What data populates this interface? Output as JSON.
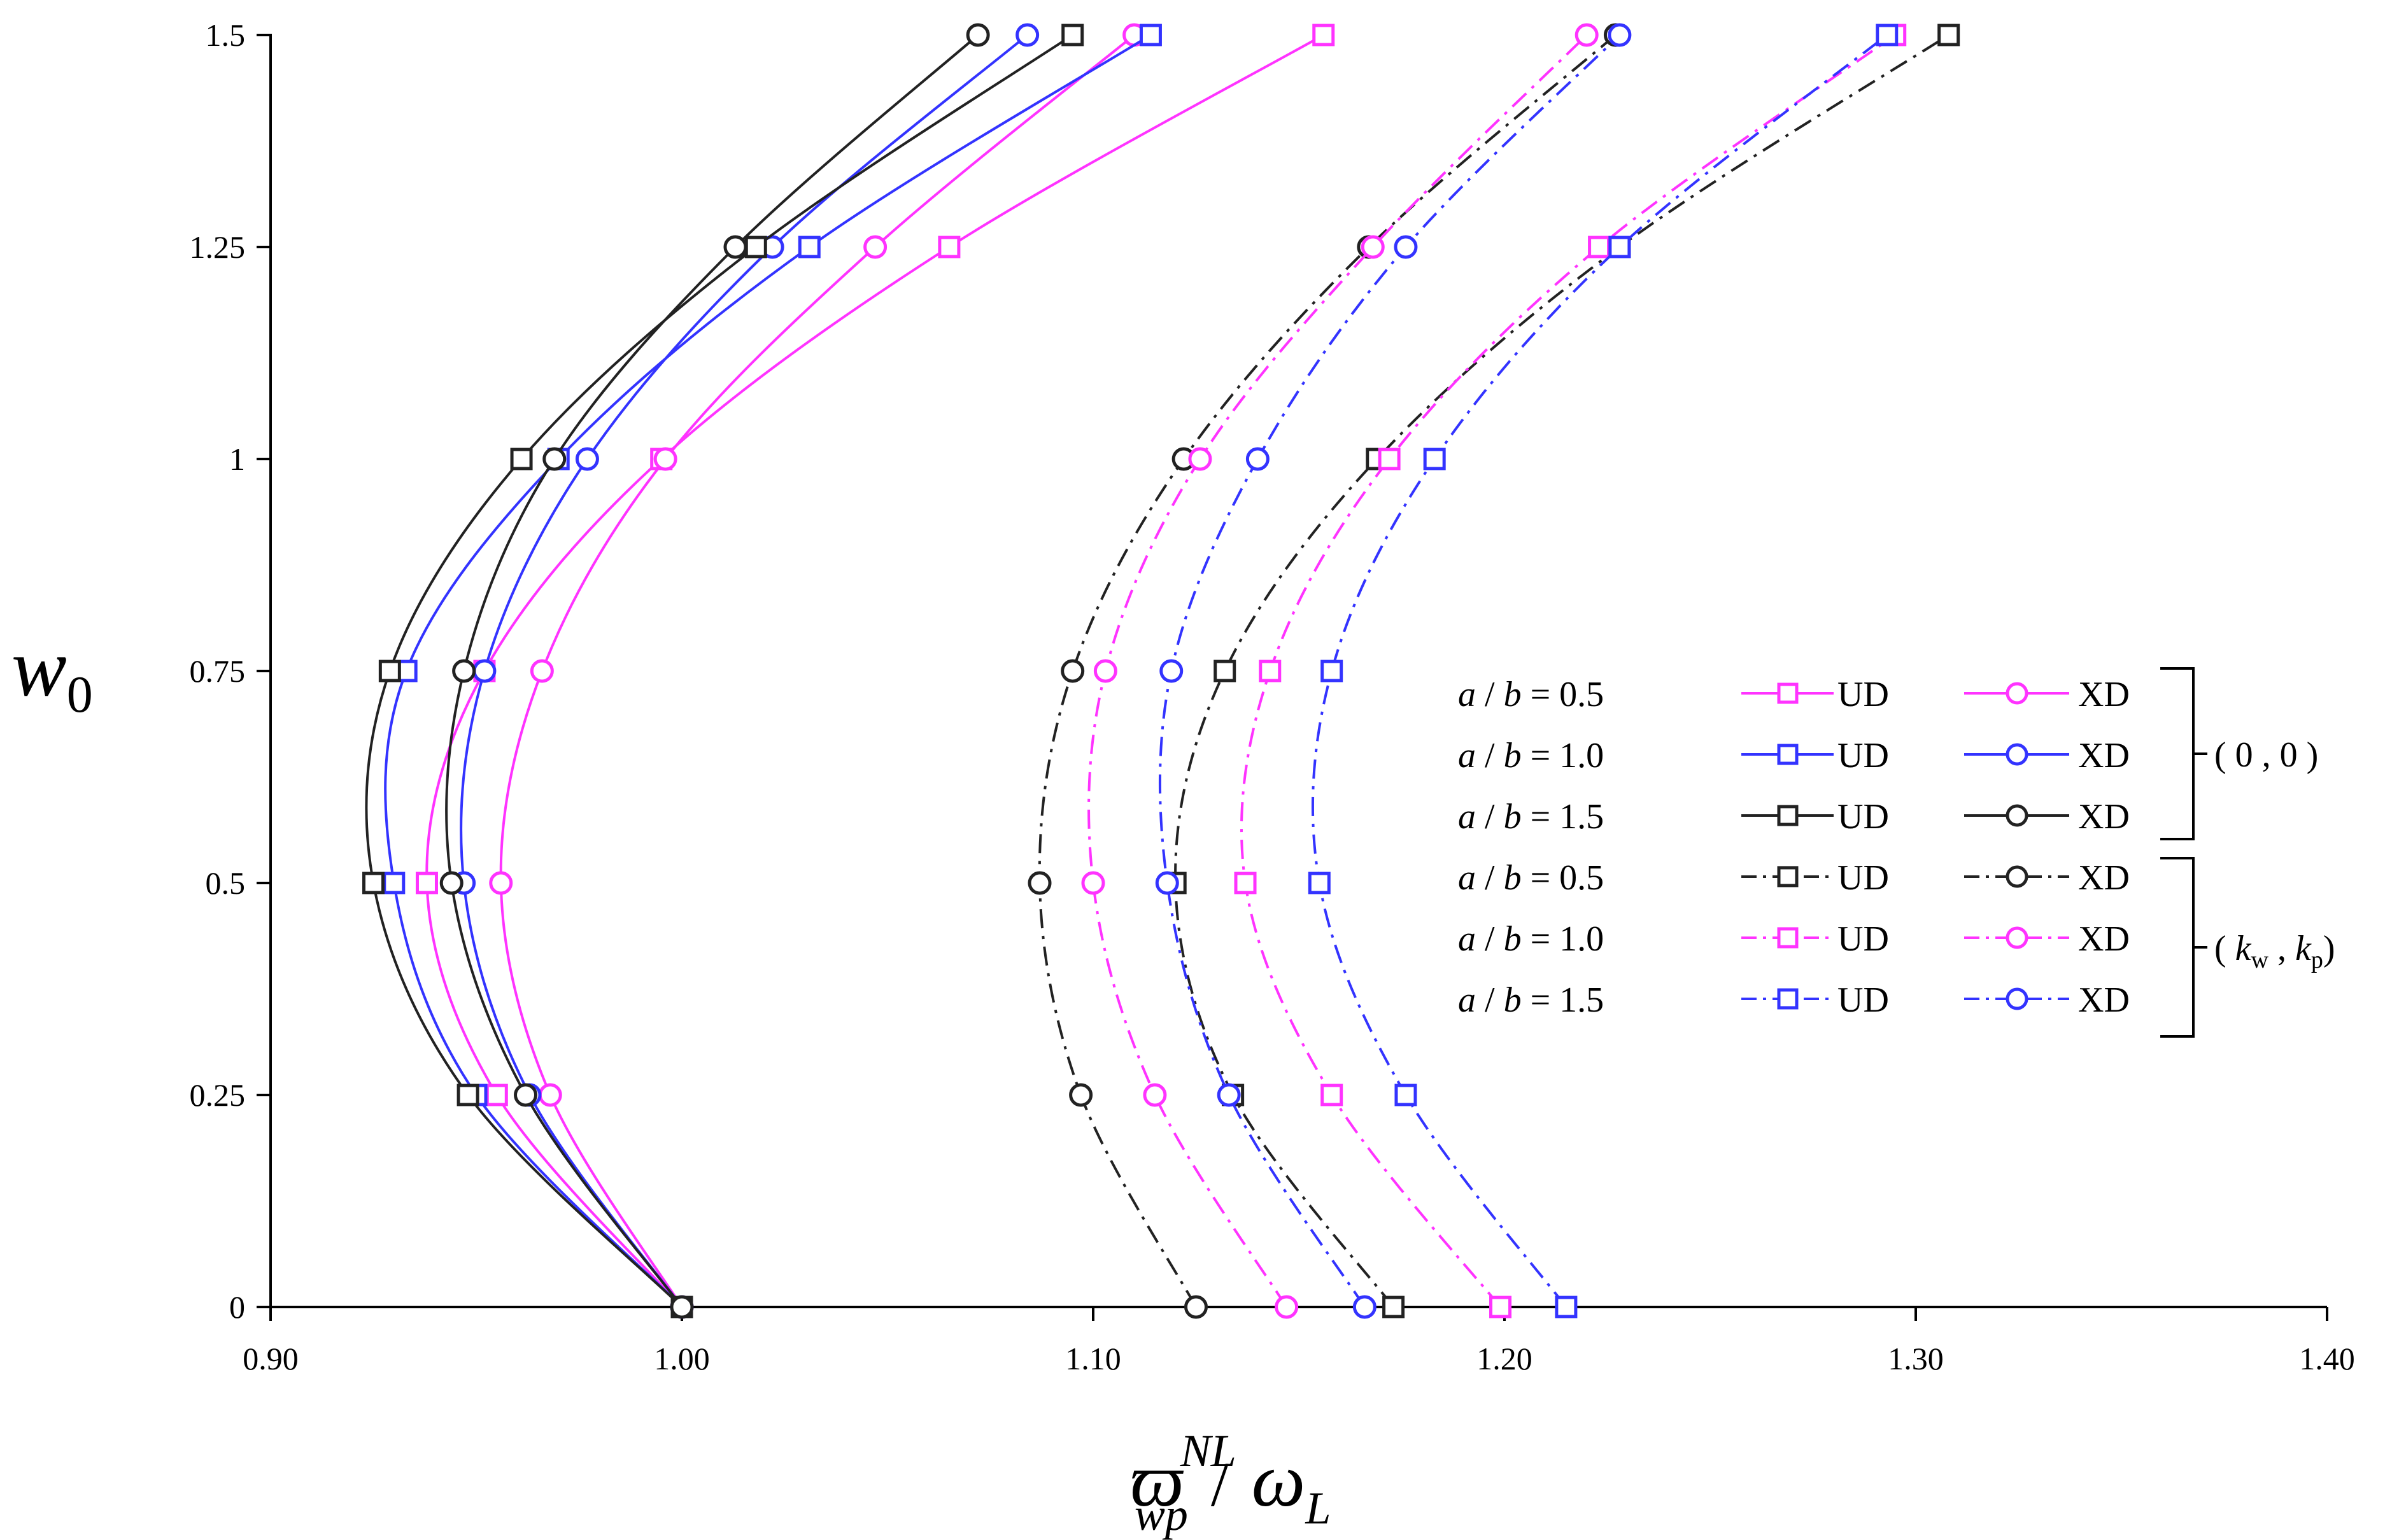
{
  "chart_data": {
    "type": "line",
    "title": "",
    "x_axis": {
      "label_base": "ϖ",
      "label_sub": "wp",
      "label_sup": "NL",
      "label_sep": "/",
      "label_base2": "ω",
      "label_sub2": "L",
      "min": 0.9,
      "max": 1.4,
      "ticks": [
        "0.90",
        "1.00",
        "1.10",
        "1.20",
        "1.30",
        "1.40"
      ]
    },
    "y_axis": {
      "label_base": "w",
      "label_sub": "0",
      "min": 0,
      "max": 1.5,
      "ticks": [
        "0",
        "0.25",
        "0.5",
        "0.75",
        "1",
        "1.25",
        "1.5"
      ]
    },
    "grid": false,
    "legend_position": "right",
    "legend": {
      "rows": [
        {
          "prefix": "a",
          "mid": " / ",
          "var": "b",
          "eq": " = 0.5",
          "left": "UD",
          "right": "XD"
        },
        {
          "prefix": "a",
          "mid": " / ",
          "var": "b",
          "eq": " = 1.0",
          "left": "UD",
          "right": "XD"
        },
        {
          "prefix": "a",
          "mid": " / ",
          "var": "b",
          "eq": " = 1.5",
          "left": "UD",
          "right": "XD"
        },
        {
          "prefix": "a",
          "mid": " / ",
          "var": "b",
          "eq": " = 0.5",
          "left": "UD",
          "right": "XD"
        },
        {
          "prefix": "a",
          "mid": " / ",
          "var": "b",
          "eq": " = 1.0",
          "left": "UD",
          "right": "XD"
        },
        {
          "prefix": "a",
          "mid": " / ",
          "var": "b",
          "eq": " = 1.5",
          "left": "UD",
          "right": "XD"
        }
      ],
      "group1_label": "( 0 , 0 )",
      "group2_open": "( ",
      "group2_k1": "k",
      "group2_sub1": "w",
      "group2_comma": " , ",
      "group2_k2": "k",
      "group2_sub2": "p",
      "group2_close": ")"
    },
    "y": [
      0,
      0.25,
      0.5,
      0.75,
      1.0,
      1.25,
      1.5
    ],
    "series": [
      {
        "foundation": "(0,0)",
        "ab": 0.5,
        "type": "UD",
        "marker": "square",
        "dash": "solid",
        "color": "#ff33ff",
        "x": [
          1.0,
          0.955,
          0.938,
          0.952,
          0.995,
          1.065,
          1.156
        ]
      },
      {
        "foundation": "(0,0)",
        "ab": 0.5,
        "type": "XD",
        "marker": "circle",
        "dash": "solid",
        "color": "#ff33ff",
        "x": [
          1.0,
          0.968,
          0.956,
          0.966,
          0.996,
          1.047,
          1.11
        ]
      },
      {
        "foundation": "(0,0)",
        "ab": 1.0,
        "type": "UD",
        "marker": "square",
        "dash": "solid",
        "color": "#3333ff",
        "x": [
          1.0,
          0.95,
          0.93,
          0.933,
          0.97,
          1.031,
          1.114
        ]
      },
      {
        "foundation": "(0,0)",
        "ab": 1.0,
        "type": "XD",
        "marker": "circle",
        "dash": "solid",
        "color": "#3333ff",
        "x": [
          1.0,
          0.963,
          0.947,
          0.952,
          0.977,
          1.022,
          1.084
        ]
      },
      {
        "foundation": "(0,0)",
        "ab": 1.5,
        "type": "UD",
        "marker": "square",
        "dash": "solid",
        "color": "#222222",
        "x": [
          1.0,
          0.948,
          0.925,
          0.929,
          0.961,
          1.018,
          1.095
        ]
      },
      {
        "foundation": "(0,0)",
        "ab": 1.5,
        "type": "XD",
        "marker": "circle",
        "dash": "solid",
        "color": "#222222",
        "x": [
          1.0,
          0.962,
          0.944,
          0.947,
          0.969,
          1.013,
          1.072
        ]
      },
      {
        "foundation": "(kw,kp)",
        "ab": 0.5,
        "type": "UD",
        "marker": "square",
        "dash": "dashdot",
        "color": "#222222",
        "x": [
          1.173,
          1.134,
          1.12,
          1.132,
          1.169,
          1.228,
          1.308
        ]
      },
      {
        "foundation": "(kw,kp)",
        "ab": 0.5,
        "type": "XD",
        "marker": "circle",
        "dash": "dashdot",
        "color": "#222222",
        "x": [
          1.125,
          1.097,
          1.087,
          1.095,
          1.122,
          1.167,
          1.227
        ]
      },
      {
        "foundation": "(kw,kp)",
        "ab": 1.0,
        "type": "UD",
        "marker": "square",
        "dash": "dashdot",
        "color": "#ff33ff",
        "x": [
          1.199,
          1.158,
          1.137,
          1.143,
          1.172,
          1.223,
          1.295
        ]
      },
      {
        "foundation": "(kw,kp)",
        "ab": 1.0,
        "type": "XD",
        "marker": "circle",
        "dash": "dashdot",
        "color": "#ff33ff",
        "x": [
          1.147,
          1.115,
          1.1,
          1.103,
          1.126,
          1.168,
          1.22
        ]
      },
      {
        "foundation": "(kw,kp)",
        "ab": 1.5,
        "type": "UD",
        "marker": "square",
        "dash": "dashdot",
        "color": "#3333ff",
        "x": [
          1.215,
          1.176,
          1.155,
          1.158,
          1.183,
          1.228,
          1.293
        ]
      },
      {
        "foundation": "(kw,kp)",
        "ab": 1.5,
        "type": "XD",
        "marker": "circle",
        "dash": "dashdot",
        "color": "#3333ff",
        "x": [
          1.166,
          1.133,
          1.118,
          1.119,
          1.14,
          1.176,
          1.228
        ]
      }
    ]
  }
}
